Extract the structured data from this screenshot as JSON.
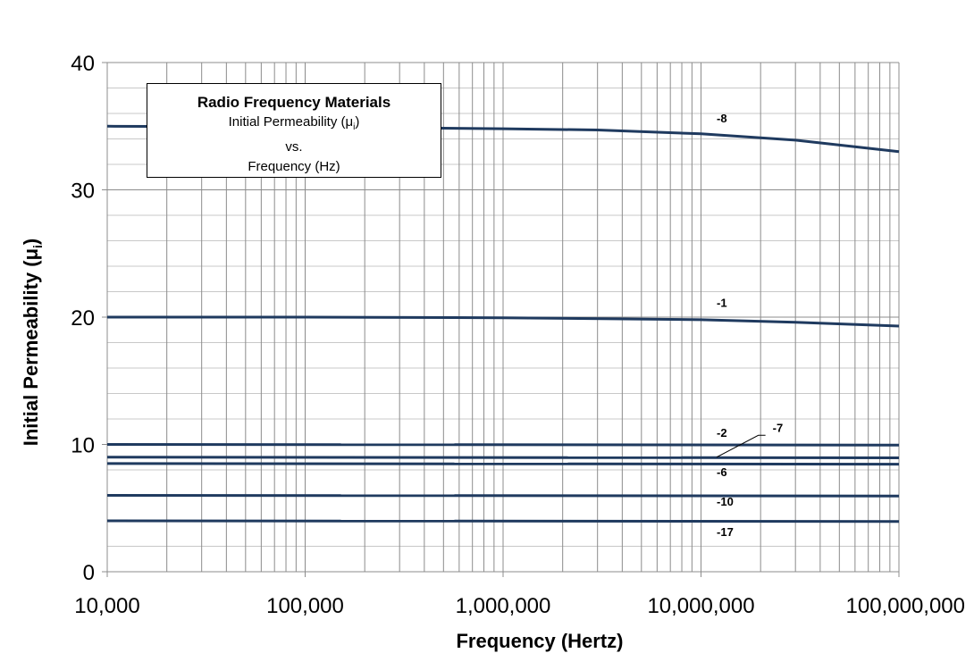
{
  "chart_data": {
    "type": "line",
    "title": "Radio Frequency Materials",
    "subtitle_lines": [
      "Initial Permeability (μ",
      "i",
      ")",
      "vs.",
      "Frequency (Hz)"
    ],
    "xlabel": "Frequency (Hertz)",
    "ylabel": "Initial Permeability (μ",
    "ylabel_sub": "i",
    "ylabel_end": ")",
    "x_scale": "log",
    "xlim": [
      10000,
      100000000
    ],
    "ylim": [
      0,
      40
    ],
    "x_ticks": [
      10000,
      100000,
      1000000,
      10000000,
      100000000
    ],
    "x_tick_labels": [
      "10,000",
      "100,000",
      "1,000,000",
      "10,000,000",
      "100,000,000"
    ],
    "y_ticks": [
      0,
      10,
      20,
      30,
      40
    ],
    "y_tick_labels": [
      "0",
      "10",
      "20",
      "30",
      "40"
    ],
    "grid": true,
    "series": [
      {
        "name": "-8",
        "x": [
          10000,
          100000,
          1000000,
          3000000,
          10000000,
          30000000,
          100000000
        ],
        "y": [
          35,
          34.95,
          34.8,
          34.7,
          34.4,
          33.9,
          33
        ]
      },
      {
        "name": "-1",
        "x": [
          10000,
          100000,
          1000000,
          10000000,
          30000000,
          100000000
        ],
        "y": [
          20,
          20,
          19.95,
          19.8,
          19.6,
          19.3
        ]
      },
      {
        "name": "-2",
        "x": [
          10000,
          100000000
        ],
        "y": [
          10,
          9.95
        ]
      },
      {
        "name": "-7",
        "x": [
          10000,
          100000000
        ],
        "y": [
          9,
          8.95
        ]
      },
      {
        "name": "-6",
        "x": [
          10000,
          100000000
        ],
        "y": [
          8.5,
          8.45
        ]
      },
      {
        "name": "-10",
        "x": [
          10000,
          100000000
        ],
        "y": [
          6,
          5.95
        ]
      },
      {
        "name": "-17",
        "x": [
          10000,
          100000000
        ],
        "y": [
          4,
          3.95
        ]
      }
    ],
    "annotations": [
      {
        "text": "-8",
        "x": 12000000,
        "y": 35.3
      },
      {
        "text": "-1",
        "x": 12000000,
        "y": 20.8
      },
      {
        "text": "-2",
        "x": 12000000,
        "y": 10.6
      },
      {
        "text": "-7",
        "x": 23000000,
        "y": 11
      },
      {
        "text": "-6",
        "x": 12000000,
        "y": 7.5
      },
      {
        "text": "-10",
        "x": 12000000,
        "y": 5.2
      },
      {
        "text": "-17",
        "x": 12000000,
        "y": 2.8
      }
    ],
    "colors": {
      "series": "#1f3a5f",
      "major_grid": "#8c8c8c",
      "minor_grid": "#c8c8c8"
    }
  }
}
